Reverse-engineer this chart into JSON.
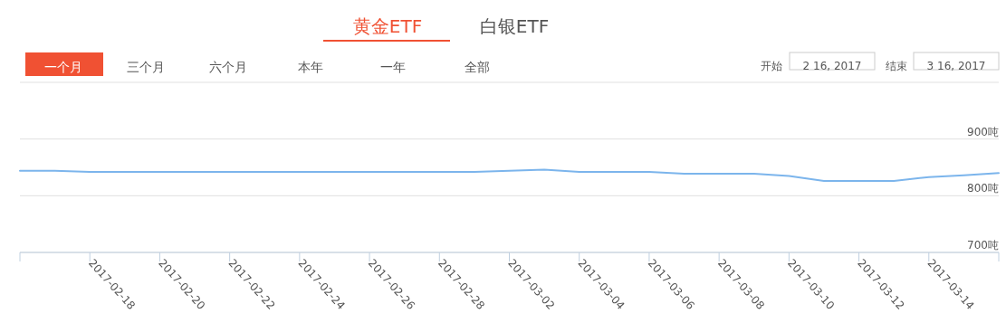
{
  "chart_data": [
    {
      "type": "other",
      "annotations": [
        "黄金ETF",
        "白银ETF",
        "一个月",
        "三个月",
        "六个月",
        "本年",
        "一年",
        "全部",
        "开始",
        "2 16, 2017",
        "结束",
        "3 16, 2017"
      ]
    },
    {
      "type": "line",
      "x": [
        "2017-02-16",
        "2017-02-17",
        "2017-02-18",
        "2017-02-19",
        "2017-02-20",
        "2017-02-21",
        "2017-02-22",
        "2017-02-23",
        "2017-02-24",
        "2017-02-25",
        "2017-02-26",
        "2017-02-27",
        "2017-02-28",
        "2017-03-01",
        "2017-03-02",
        "2017-03-03",
        "2017-03-04",
        "2017-03-05",
        "2017-03-06",
        "2017-03-07",
        "2017-03-08",
        "2017-03-09",
        "2017-03-10",
        "2017-03-11",
        "2017-03-12",
        "2017-03-13",
        "2017-03-14",
        "2017-03-15",
        "2017-03-16"
      ],
      "series": [
        {
          "color": "#7cb5ec",
          "values": [
            844,
            844,
            842,
            842,
            842,
            842,
            842,
            842,
            842,
            842,
            842,
            842,
            842,
            842,
            844,
            846,
            842,
            842,
            842,
            839,
            839,
            839,
            835,
            826,
            826,
            826,
            833,
            836,
            840
          ]
        }
      ],
      "xlim": [
        "2017-02-16",
        "2017-03-16"
      ],
      "xticks": [
        {
          "value": "2017-02-16",
          "label": null
        },
        "2017-02-18",
        "2017-02-20",
        "2017-02-22",
        "2017-02-24",
        "2017-02-26",
        "2017-02-28",
        "2017-03-02",
        "2017-03-04",
        "2017-03-06",
        "2017-03-08",
        "2017-03-10",
        "2017-03-12",
        "2017-03-14",
        {
          "value": "2017-03-16",
          "label": null
        }
      ],
      "ylim": [
        700,
        1000
      ],
      "yticks": [
        {
          "value": 700,
          "label": "700吨"
        },
        {
          "value": 800,
          "label": "800吨"
        },
        {
          "value": 900,
          "label": "900吨"
        },
        {
          "value": 1000,
          "label": null
        }
      ],
      "grid": "y",
      "marker": "none",
      "line_style": "solid"
    }
  ]
}
